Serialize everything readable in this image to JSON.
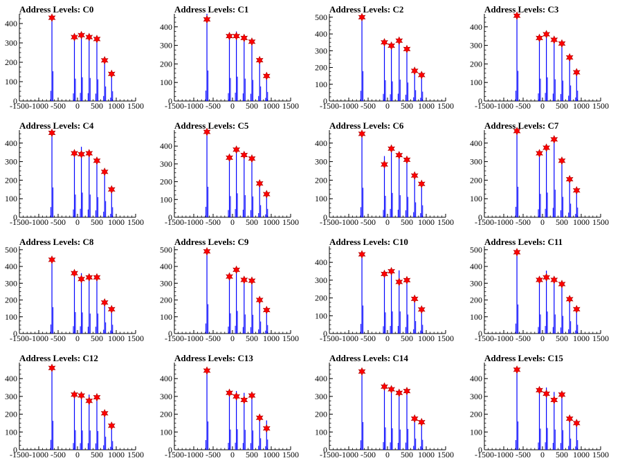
{
  "colors": {
    "histogram": "#0000ff",
    "peak_marker": "#ff0000",
    "frame": "#000000",
    "background": "#ffffff"
  },
  "marker": "star",
  "chart_data": [
    {
      "type": "bar",
      "title": "Address Levels: C0",
      "xlim": [
        -1500,
        1500
      ],
      "ylim": [
        0,
        450
      ],
      "yticks": [
        0,
        100,
        200,
        300,
        400
      ],
      "xticks": [
        -1500,
        -1000,
        -500,
        0,
        500,
        1000,
        1500
      ],
      "peaks": {
        "x": [
          -660,
          -80,
          100,
          300,
          500,
          700,
          880
        ],
        "y": [
          430,
          330,
          340,
          330,
          320,
          210,
          140
        ]
      },
      "bins": {
        "x": [
          -660,
          -80,
          100,
          300,
          500,
          700,
          880
        ],
        "y": [
          440,
          330,
          350,
          340,
          320,
          215,
          145
        ]
      }
    },
    {
      "type": "bar",
      "title": "Address Levels: C1",
      "xlim": [
        -1500,
        1500
      ],
      "ylim": [
        0,
        470
      ],
      "yticks": [
        0,
        100,
        200,
        300,
        400
      ],
      "xticks": [
        -1500,
        -1000,
        -500,
        0,
        500,
        1000,
        1500
      ],
      "peaks": {
        "x": [
          -660,
          -80,
          100,
          300,
          500,
          700,
          880
        ],
        "y": [
          440,
          350,
          350,
          340,
          320,
          220,
          135
        ]
      },
      "bins": {
        "x": [
          -660,
          -80,
          100,
          300,
          500,
          700,
          880
        ],
        "y": [
          470,
          355,
          375,
          345,
          325,
          225,
          140
        ]
      }
    },
    {
      "type": "bar",
      "title": "Address Levels: C2",
      "xlim": [
        -1500,
        1500
      ],
      "ylim": [
        0,
        520
      ],
      "yticks": [
        0,
        100,
        200,
        300,
        400,
        500
      ],
      "xticks": [
        -1500,
        -1000,
        -500,
        0,
        500,
        1000,
        1500
      ],
      "peaks": {
        "x": [
          -660,
          -80,
          100,
          300,
          500,
          700,
          880
        ],
        "y": [
          500,
          350,
          330,
          360,
          310,
          180,
          155
        ]
      },
      "bins": {
        "x": [
          -660,
          -80,
          100,
          300,
          500,
          700,
          880
        ],
        "y": [
          510,
          355,
          335,
          365,
          315,
          185,
          160
        ]
      }
    },
    {
      "type": "bar",
      "title": "Address Levels: C3",
      "xlim": [
        -1500,
        1500
      ],
      "ylim": [
        0,
        470
      ],
      "yticks": [
        0,
        100,
        200,
        300,
        400
      ],
      "xticks": [
        -1500,
        -1000,
        -500,
        0,
        500,
        1000,
        1500
      ],
      "peaks": {
        "x": [
          -660,
          -80,
          100,
          300,
          500,
          700,
          880
        ],
        "y": [
          460,
          340,
          360,
          330,
          310,
          235,
          155
        ]
      },
      "bins": {
        "x": [
          -660,
          -80,
          100,
          300,
          500,
          700,
          880
        ],
        "y": [
          465,
          345,
          365,
          335,
          315,
          240,
          160
        ]
      }
    },
    {
      "type": "bar",
      "title": "Address Levels: C4",
      "xlim": [
        -1500,
        1500
      ],
      "ylim": [
        0,
        470
      ],
      "yticks": [
        0,
        100,
        200,
        300,
        400
      ],
      "xticks": [
        -1500,
        -1000,
        -500,
        0,
        500,
        1000,
        1500
      ],
      "peaks": {
        "x": [
          -660,
          -80,
          100,
          300,
          500,
          700,
          880
        ],
        "y": [
          455,
          345,
          340,
          345,
          305,
          245,
          150
        ]
      },
      "bins": {
        "x": [
          -660,
          -80,
          100,
          300,
          500,
          700,
          880
        ],
        "y": [
          460,
          350,
          380,
          350,
          310,
          250,
          155
        ]
      }
    },
    {
      "type": "bar",
      "title": "Address Levels: C5",
      "xlim": [
        -1500,
        1500
      ],
      "ylim": [
        0,
        490
      ],
      "yticks": [
        0,
        100,
        200,
        300,
        400
      ],
      "xticks": [
        -1500,
        -1000,
        -500,
        0,
        500,
        1000,
        1500
      ],
      "peaks": {
        "x": [
          -660,
          -80,
          100,
          300,
          500,
          700,
          880
        ],
        "y": [
          480,
          335,
          380,
          350,
          330,
          190,
          130
        ]
      },
      "bins": {
        "x": [
          -660,
          -80,
          100,
          300,
          500,
          700,
          880
        ],
        "y": [
          490,
          340,
          385,
          355,
          335,
          195,
          135
        ]
      }
    },
    {
      "type": "bar",
      "title": "Address Levels: C6",
      "xlim": [
        -1500,
        1500
      ],
      "ylim": [
        0,
        470
      ],
      "yticks": [
        0,
        100,
        200,
        300,
        400
      ],
      "xticks": [
        -1500,
        -1000,
        -500,
        0,
        500,
        1000,
        1500
      ],
      "peaks": {
        "x": [
          -660,
          -80,
          100,
          300,
          500,
          700,
          880
        ],
        "y": [
          450,
          285,
          370,
          335,
          310,
          225,
          180
        ]
      },
      "bins": {
        "x": [
          -660,
          -80,
          100,
          300,
          500,
          700,
          880
        ],
        "y": [
          455,
          330,
          375,
          340,
          315,
          230,
          185
        ]
      }
    },
    {
      "type": "bar",
      "title": "Address Levels: C7",
      "xlim": [
        -1500,
        1500
      ],
      "ylim": [
        0,
        470
      ],
      "yticks": [
        0,
        100,
        200,
        300,
        400
      ],
      "xticks": [
        -1500,
        -1000,
        -500,
        0,
        500,
        1000,
        1500
      ],
      "peaks": {
        "x": [
          -660,
          -80,
          100,
          300,
          500,
          700,
          880
        ],
        "y": [
          465,
          345,
          375,
          420,
          305,
          205,
          145
        ]
      },
      "bins": {
        "x": [
          -660,
          -80,
          100,
          300,
          500,
          700,
          880
        ],
        "y": [
          470,
          360,
          380,
          425,
          315,
          210,
          150
        ]
      }
    },
    {
      "type": "bar",
      "title": "Address Levels: C8",
      "xlim": [
        -1500,
        1500
      ],
      "ylim": [
        0,
        520
      ],
      "yticks": [
        0,
        100,
        200,
        300,
        400,
        500
      ],
      "xticks": [
        -1500,
        -1000,
        -500,
        0,
        500,
        1000,
        1500
      ],
      "peaks": {
        "x": [
          -660,
          -80,
          100,
          300,
          500,
          700,
          880
        ],
        "y": [
          440,
          360,
          325,
          335,
          335,
          185,
          145
        ]
      },
      "bins": {
        "x": [
          -660,
          -80,
          100,
          300,
          500,
          700,
          880
        ],
        "y": [
          450,
          365,
          360,
          340,
          340,
          190,
          150
        ]
      }
    },
    {
      "type": "bar",
      "title": "Address Levels: C9",
      "xlim": [
        -1500,
        1500
      ],
      "ylim": [
        0,
        520
      ],
      "yticks": [
        0,
        100,
        200,
        300,
        400,
        500
      ],
      "xticks": [
        -1500,
        -1000,
        -500,
        0,
        500,
        1000,
        1500
      ],
      "peaks": {
        "x": [
          -660,
          -80,
          100,
          300,
          500,
          700,
          880
        ],
        "y": [
          490,
          340,
          380,
          320,
          315,
          200,
          140
        ]
      },
      "bins": {
        "x": [
          -660,
          -80,
          100,
          300,
          500,
          700,
          880
        ],
        "y": [
          500,
          345,
          385,
          325,
          320,
          205,
          145
        ]
      }
    },
    {
      "type": "bar",
      "title": "Address Levels: C10",
      "xlim": [
        -1500,
        1500
      ],
      "ylim": [
        0,
        490
      ],
      "yticks": [
        0,
        100,
        200,
        300,
        400
      ],
      "xticks": [
        -1500,
        -1000,
        -500,
        0,
        500,
        1000,
        1500
      ],
      "peaks": {
        "x": [
          -660,
          -80,
          100,
          300,
          500,
          700,
          880
        ],
        "y": [
          445,
          335,
          350,
          290,
          300,
          195,
          135
        ]
      },
      "bins": {
        "x": [
          -660,
          -80,
          100,
          300,
          500,
          700,
          880
        ],
        "y": [
          450,
          340,
          355,
          355,
          305,
          200,
          140
        ]
      }
    },
    {
      "type": "bar",
      "title": "Address Levels: C11",
      "xlim": [
        -1500,
        1500
      ],
      "ylim": [
        0,
        520
      ],
      "yticks": [
        0,
        100,
        200,
        300,
        400,
        500
      ],
      "xticks": [
        -1500,
        -1000,
        -500,
        0,
        500,
        1000,
        1500
      ],
      "peaks": {
        "x": [
          -660,
          -80,
          100,
          300,
          500,
          700,
          880
        ],
        "y": [
          485,
          320,
          335,
          320,
          295,
          205,
          145
        ]
      },
      "bins": {
        "x": [
          -660,
          -80,
          100,
          300,
          500,
          700,
          880
        ],
        "y": [
          495,
          325,
          375,
          325,
          300,
          210,
          150
        ]
      }
    },
    {
      "type": "bar",
      "title": "Address Levels: C12",
      "xlim": [
        -1500,
        1500
      ],
      "ylim": [
        0,
        490
      ],
      "yticks": [
        0,
        100,
        200,
        300,
        400
      ],
      "xticks": [
        -1500,
        -1000,
        -500,
        0,
        500,
        1000,
        1500
      ],
      "peaks": {
        "x": [
          -660,
          -80,
          100,
          300,
          500,
          700,
          880
        ],
        "y": [
          460,
          310,
          305,
          275,
          295,
          205,
          135
        ]
      },
      "bins": {
        "x": [
          -660,
          -80,
          100,
          300,
          500,
          700,
          880
        ],
        "y": [
          465,
          315,
          310,
          310,
          300,
          210,
          140
        ]
      }
    },
    {
      "type": "bar",
      "title": "Address Levels: C13",
      "xlim": [
        -1500,
        1500
      ],
      "ylim": [
        0,
        490
      ],
      "yticks": [
        0,
        100,
        200,
        300,
        400
      ],
      "xticks": [
        -1500,
        -1000,
        -500,
        0,
        500,
        1000,
        1500
      ],
      "peaks": {
        "x": [
          -660,
          -80,
          100,
          300,
          500,
          700,
          880
        ],
        "y": [
          445,
          320,
          300,
          280,
          305,
          180,
          120
        ]
      },
      "bins": {
        "x": [
          -660,
          -80,
          100,
          300,
          500,
          700,
          880
        ],
        "y": [
          455,
          325,
          330,
          320,
          310,
          185,
          165
        ]
      }
    },
    {
      "type": "bar",
      "title": "Address Levels: C14",
      "xlim": [
        -1500,
        1500
      ],
      "ylim": [
        0,
        490
      ],
      "yticks": [
        0,
        100,
        200,
        300,
        400
      ],
      "xticks": [
        -1500,
        -1000,
        -500,
        0,
        500,
        1000,
        1500
      ],
      "peaks": {
        "x": [
          -660,
          -80,
          100,
          300,
          500,
          700,
          880
        ],
        "y": [
          440,
          355,
          340,
          320,
          330,
          175,
          155
        ]
      },
      "bins": {
        "x": [
          -660,
          -80,
          100,
          300,
          500,
          700,
          880
        ],
        "y": [
          445,
          360,
          345,
          325,
          335,
          180,
          160
        ]
      }
    },
    {
      "type": "bar",
      "title": "Address Levels: C15",
      "xlim": [
        -1500,
        1500
      ],
      "ylim": [
        0,
        490
      ],
      "yticks": [
        0,
        100,
        200,
        300,
        400
      ],
      "xticks": [
        -1500,
        -1000,
        -500,
        0,
        500,
        1000,
        1500
      ],
      "peaks": {
        "x": [
          -660,
          -80,
          100,
          300,
          500,
          700,
          880
        ],
        "y": [
          450,
          335,
          315,
          280,
          310,
          175,
          150
        ]
      },
      "bins": {
        "x": [
          -660,
          -80,
          100,
          300,
          500,
          700,
          880
        ],
        "y": [
          455,
          340,
          350,
          325,
          315,
          180,
          155
        ]
      }
    }
  ]
}
